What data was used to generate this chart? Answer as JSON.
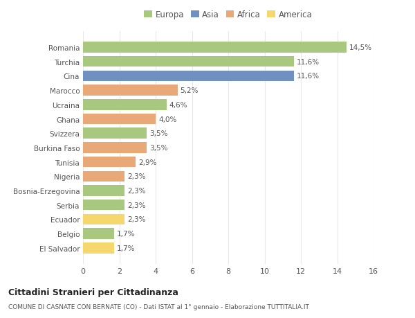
{
  "categories": [
    "El Salvador",
    "Belgio",
    "Ecuador",
    "Serbia",
    "Bosnia-Erzegovina",
    "Nigeria",
    "Tunisia",
    "Burkina Faso",
    "Svizzera",
    "Ghana",
    "Ucraina",
    "Marocco",
    "Cina",
    "Turchia",
    "Romania"
  ],
  "values": [
    1.7,
    1.7,
    2.3,
    2.3,
    2.3,
    2.3,
    2.9,
    3.5,
    3.5,
    4.0,
    4.6,
    5.2,
    11.6,
    11.6,
    14.5
  ],
  "labels": [
    "1,7%",
    "1,7%",
    "2,3%",
    "2,3%",
    "2,3%",
    "2,3%",
    "2,9%",
    "3,5%",
    "3,5%",
    "4,0%",
    "4,6%",
    "5,2%",
    "11,6%",
    "11,6%",
    "14,5%"
  ],
  "colors": [
    "#f5d76e",
    "#a8c880",
    "#f5d76e",
    "#a8c880",
    "#a8c880",
    "#e8a878",
    "#e8a878",
    "#e8a878",
    "#a8c880",
    "#e8a878",
    "#a8c880",
    "#e8a878",
    "#7090c0",
    "#a8c880",
    "#a8c880"
  ],
  "legend": [
    {
      "label": "Europa",
      "color": "#a8c880"
    },
    {
      "label": "Asia",
      "color": "#7090c0"
    },
    {
      "label": "Africa",
      "color": "#e8a878"
    },
    {
      "label": "America",
      "color": "#f5d76e"
    }
  ],
  "xlim": [
    0,
    16
  ],
  "xticks": [
    0,
    2,
    4,
    6,
    8,
    10,
    12,
    14,
    16
  ],
  "title": "Cittadini Stranieri per Cittadinanza",
  "subtitle": "COMUNE DI CASNATE CON BERNATE (CO) - Dati ISTAT al 1° gennaio - Elaborazione TUTTITALIA.IT",
  "bg_color": "#ffffff",
  "grid_color": "#e8e8e8",
  "bar_height": 0.75
}
